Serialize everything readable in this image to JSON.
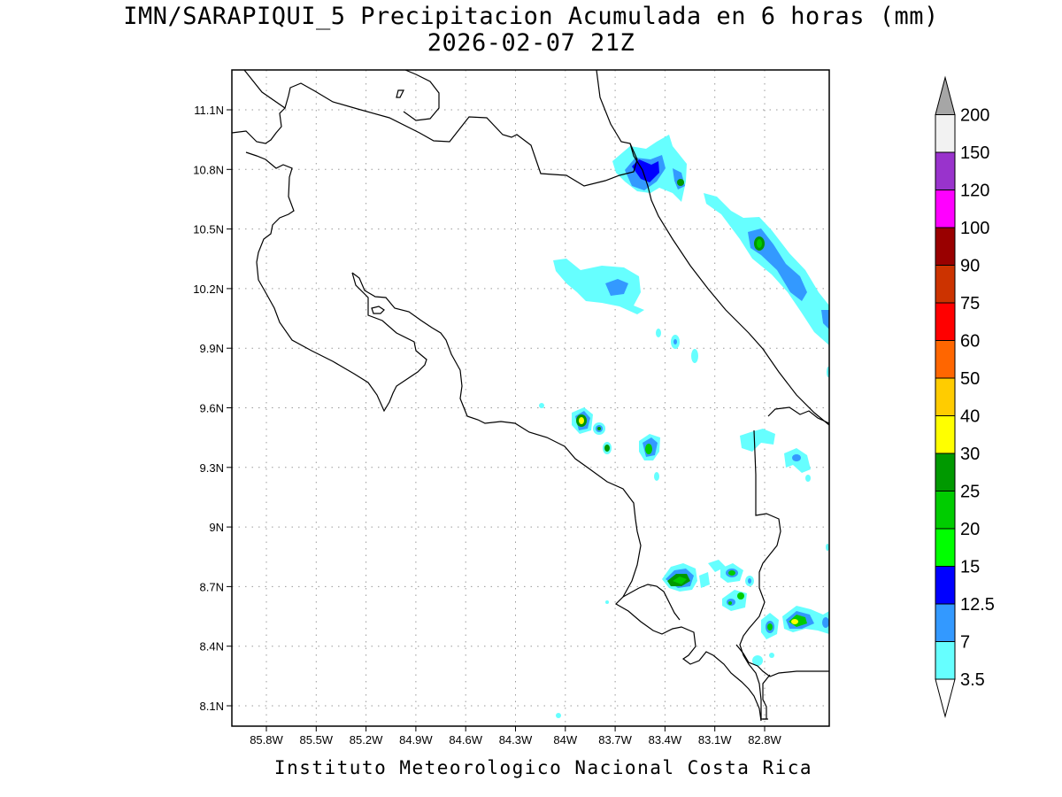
{
  "title_line1": "IMN/SARAPIQUI_5 Precipitacion Acumulada en 6 horas (mm)",
  "title_line2": "2026-02-07 21Z",
  "footer": "Instituto Meteorologico Nacional Costa Rica",
  "map": {
    "lon_labels": [
      "85.8W",
      "85.5W",
      "85.2W",
      "84.9W",
      "84.6W",
      "84.3W",
      "84W",
      "83.7W",
      "83.4W",
      "83.1W",
      "82.8W"
    ],
    "lat_labels": [
      "11.1N",
      "10.8N",
      "10.5N",
      "10.2N",
      "9.9N",
      "9.6N",
      "9.3N",
      "9N",
      "8.7N",
      "8.4N",
      "8.1N"
    ]
  },
  "colorbar": {
    "levels": [
      "3.5",
      "7",
      "12.5",
      "15",
      "20",
      "25",
      "30",
      "40",
      "50",
      "60",
      "75",
      "90",
      "100",
      "120",
      "150",
      "200"
    ],
    "colors": [
      "#66ffff",
      "#3399ff",
      "#0000ff",
      "#00ff00",
      "#00cc00",
      "#009900",
      "#ffff00",
      "#ffcc00",
      "#ff6600",
      "#ff0000",
      "#cc3300",
      "#990000",
      "#ff00ff",
      "#9933cc",
      "#f2f2f2",
      "#a6a6a6"
    ]
  }
}
